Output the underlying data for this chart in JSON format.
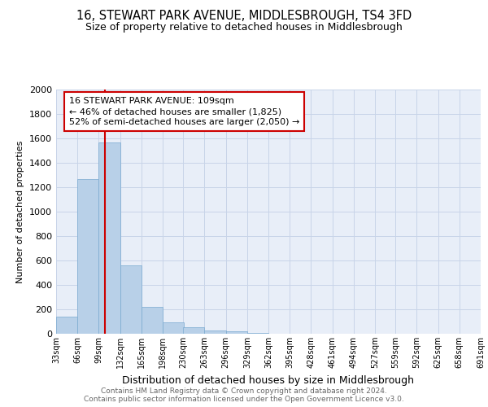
{
  "title": "16, STEWART PARK AVENUE, MIDDLESBROUGH, TS4 3FD",
  "subtitle": "Size of property relative to detached houses in Middlesbrough",
  "xlabel": "Distribution of detached houses by size in Middlesbrough",
  "ylabel": "Number of detached properties",
  "footer_line1": "Contains HM Land Registry data © Crown copyright and database right 2024.",
  "footer_line2": "Contains public sector information licensed under the Open Government Licence v3.0.",
  "bar_edges": [
    33,
    66,
    99,
    132,
    165,
    198,
    230,
    263,
    296,
    329,
    362,
    395,
    428,
    461,
    494,
    527,
    559,
    592,
    625,
    658,
    691
  ],
  "bar_heights": [
    140,
    1270,
    1570,
    560,
    220,
    95,
    55,
    30,
    18,
    8,
    3,
    0,
    0,
    0,
    0,
    0,
    0,
    0,
    0,
    0
  ],
  "bar_color": "#b8d0e8",
  "bar_edgecolor": "#7aaad0",
  "property_size": 109,
  "vline_color": "#cc0000",
  "annotation_text": "16 STEWART PARK AVENUE: 109sqm\n← 46% of detached houses are smaller (1,825)\n52% of semi-detached houses are larger (2,050) →",
  "annotation_box_color": "#cc0000",
  "ylim": [
    0,
    2000
  ],
  "yticks": [
    0,
    200,
    400,
    600,
    800,
    1000,
    1200,
    1400,
    1600,
    1800,
    2000
  ],
  "xtick_labels": [
    "33sqm",
    "66sqm",
    "99sqm",
    "132sqm",
    "165sqm",
    "198sqm",
    "230sqm",
    "263sqm",
    "296sqm",
    "329sqm",
    "362sqm",
    "395sqm",
    "428sqm",
    "461sqm",
    "494sqm",
    "527sqm",
    "559sqm",
    "592sqm",
    "625sqm",
    "658sqm",
    "691sqm"
  ],
  "grid_color": "#c8d4e8",
  "background_color": "#e8eef8",
  "title_fontsize": 10.5,
  "subtitle_fontsize": 9,
  "ylabel_fontsize": 8,
  "xlabel_fontsize": 9,
  "ytick_fontsize": 8,
  "xtick_fontsize": 7,
  "annotation_fontsize": 8,
  "footer_fontsize": 6.5
}
